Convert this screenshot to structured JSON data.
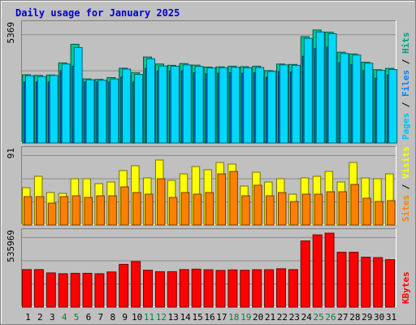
{
  "chart_data": {
    "type": "bar",
    "title": "Daily usage for January 2025",
    "categories": [
      "1",
      "2",
      "3",
      "4",
      "5",
      "6",
      "7",
      "8",
      "9",
      "10",
      "11",
      "12",
      "13",
      "14",
      "15",
      "16",
      "17",
      "18",
      "19",
      "20",
      "21",
      "22",
      "23",
      "24",
      "25",
      "26",
      "27",
      "28",
      "29",
      "30",
      "31"
    ],
    "weekend_categories": [
      "4",
      "5",
      "11",
      "12",
      "18",
      "19",
      "25",
      "26"
    ],
    "panels": [
      {
        "id": "top",
        "max_label": "5369",
        "ylim": [
          0,
          5369
        ],
        "legend": [
          {
            "label": "Pages",
            "color": "#00c0ff"
          },
          {
            "label": "Files",
            "color": "#0080ff"
          },
          {
            "label": "Hits",
            "color": "#00a080"
          }
        ],
        "series": [
          {
            "name": "Hits",
            "color": "#00c890",
            "values": [
              3110,
              3080,
              3100,
              3650,
              4500,
              2920,
              2900,
              2980,
              3410,
              3200,
              3920,
              3600,
              3540,
              3620,
              3550,
              3460,
              3470,
              3500,
              3480,
              3500,
              3300,
              3600,
              3580,
              4850,
              5150,
              5050,
              4140,
              4060,
              3680,
              3340,
              3400
            ]
          },
          {
            "name": "Files",
            "color": "#0066cc",
            "values": [
              2780,
              2780,
              2780,
              3300,
              3500,
              2780,
              2780,
              2780,
              3000,
              2780,
              3400,
              3280,
              3280,
              3280,
              3200,
              3150,
              3180,
              3200,
              3180,
              3200,
              3000,
              3260,
              3240,
              3950,
              4300,
              4380,
              3670,
              3580,
              3300,
              2950,
              3100
            ]
          },
          {
            "name": "Pages",
            "color": "#00d8ff",
            "values": [
              3070,
              3030,
              3080,
              3600,
              4350,
              2880,
              2860,
              2920,
              3370,
              3130,
              3840,
              3510,
              3500,
              3560,
              3490,
              3420,
              3430,
              3450,
              3430,
              3440,
              3260,
              3560,
              3540,
              4770,
              5060,
              4980,
              4080,
              4010,
              3640,
              3310,
              3350
            ]
          }
        ]
      },
      {
        "id": "middle",
        "max_label": "91",
        "ylim": [
          0,
          91
        ],
        "legend": [
          {
            "label": "Sites",
            "color": "#ff8000"
          },
          {
            "label": "Visits",
            "color": "#ffff00"
          }
        ],
        "series": [
          {
            "name": "Visits",
            "color": "#ffff00",
            "values": [
              46,
              60,
              40,
              39,
              57,
              57,
              51,
              53,
              67,
              73,
              58,
              80,
              55,
              63,
              72,
              68,
              77,
              75,
              48,
              65,
              53,
              57,
              38,
              58,
              60,
              66,
              53,
              77,
              58,
              57,
              63
            ]
          },
          {
            "name": "Sites",
            "color": "#ff8000",
            "values": [
              35,
              35,
              27,
              35,
              36,
              34,
              36,
              36,
              47,
              40,
              38,
              57,
              34,
              40,
              38,
              40,
              63,
              66,
              36,
              49,
              36,
              40,
              29,
              38,
              38,
              41,
              41,
              50,
              33,
              29,
              30
            ]
          }
        ]
      },
      {
        "id": "bottom",
        "max_label": "535969",
        "ylim": [
          0,
          535969
        ],
        "legend": [
          {
            "label": "KBytes",
            "color": "#ff0000"
          }
        ],
        "series": [
          {
            "name": "KBytes",
            "color": "#ff0000",
            "values": [
              272000,
              272000,
              248000,
              242000,
              245000,
              245000,
              242000,
              255000,
              310000,
              330000,
              268000,
              257000,
              257000,
              272000,
              275000,
              271000,
              266000,
              270000,
              267000,
              271000,
              271000,
              278000,
              272000,
              480000,
              524000,
              535969,
              398000,
              398000,
              362000,
              359000,
              344000
            ]
          }
        ]
      }
    ],
    "grid": true
  }
}
